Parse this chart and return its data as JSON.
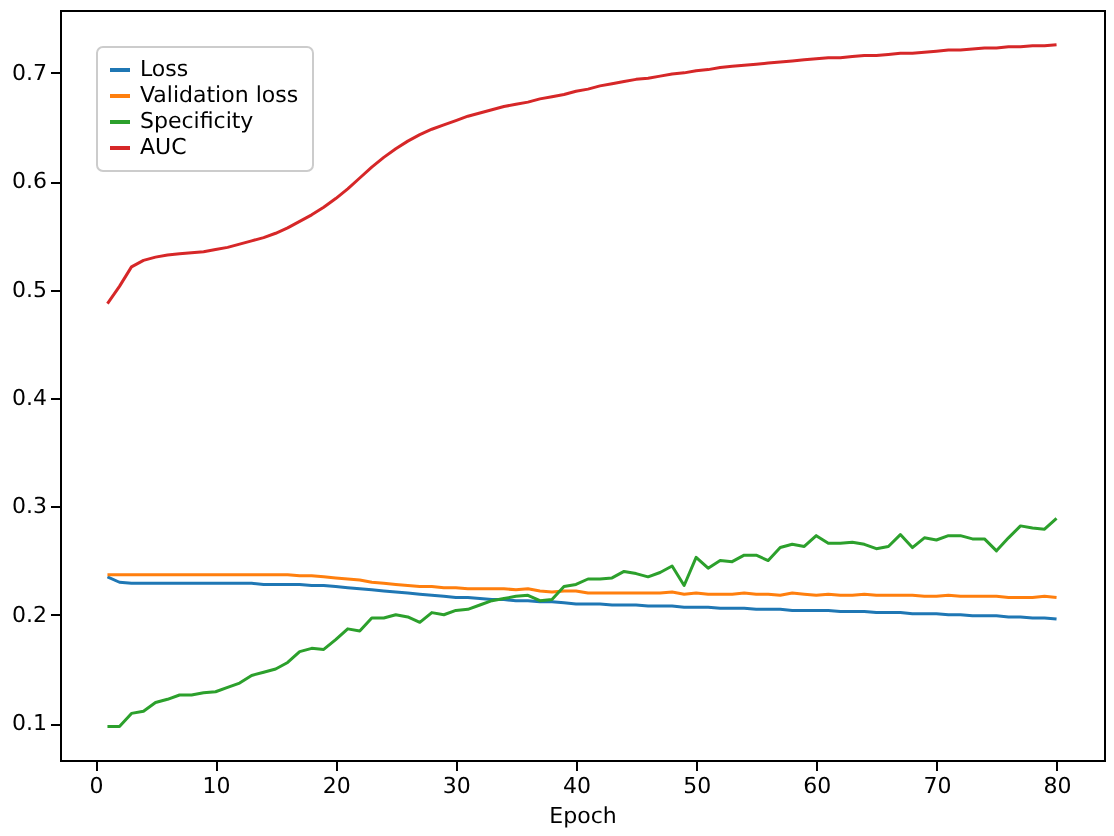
{
  "chart_data": {
    "type": "line",
    "xlabel": "Epoch",
    "x": [
      1,
      2,
      3,
      4,
      5,
      6,
      7,
      8,
      9,
      10,
      11,
      12,
      13,
      14,
      15,
      16,
      17,
      18,
      19,
      20,
      21,
      22,
      23,
      24,
      25,
      26,
      27,
      28,
      29,
      30,
      31,
      32,
      33,
      34,
      35,
      36,
      37,
      38,
      39,
      40,
      41,
      42,
      43,
      44,
      45,
      46,
      47,
      48,
      49,
      50,
      51,
      52,
      53,
      54,
      55,
      56,
      57,
      58,
      59,
      60,
      61,
      62,
      63,
      64,
      65,
      66,
      67,
      68,
      69,
      70,
      71,
      72,
      73,
      74,
      75,
      76,
      77,
      78,
      79,
      80
    ],
    "series": [
      {
        "name": "Loss",
        "color": "#1f77b4",
        "values": [
          0.235,
          0.23,
          0.229,
          0.229,
          0.229,
          0.229,
          0.229,
          0.229,
          0.229,
          0.229,
          0.229,
          0.229,
          0.229,
          0.228,
          0.228,
          0.228,
          0.228,
          0.227,
          0.227,
          0.226,
          0.225,
          0.224,
          0.223,
          0.222,
          0.221,
          0.22,
          0.219,
          0.218,
          0.217,
          0.216,
          0.216,
          0.215,
          0.214,
          0.214,
          0.213,
          0.213,
          0.212,
          0.212,
          0.211,
          0.21,
          0.21,
          0.21,
          0.209,
          0.209,
          0.209,
          0.208,
          0.208,
          0.208,
          0.207,
          0.207,
          0.207,
          0.206,
          0.206,
          0.206,
          0.205,
          0.205,
          0.205,
          0.204,
          0.204,
          0.204,
          0.204,
          0.203,
          0.203,
          0.203,
          0.202,
          0.202,
          0.202,
          0.201,
          0.201,
          0.201,
          0.2,
          0.2,
          0.199,
          0.199,
          0.199,
          0.198,
          0.198,
          0.197,
          0.197,
          0.196
        ]
      },
      {
        "name": "Validation loss",
        "color": "#ff7f0e",
        "values": [
          0.237,
          0.237,
          0.237,
          0.237,
          0.237,
          0.237,
          0.237,
          0.237,
          0.237,
          0.237,
          0.237,
          0.237,
          0.237,
          0.237,
          0.237,
          0.237,
          0.236,
          0.236,
          0.235,
          0.234,
          0.233,
          0.232,
          0.23,
          0.229,
          0.228,
          0.227,
          0.226,
          0.226,
          0.225,
          0.225,
          0.224,
          0.224,
          0.224,
          0.224,
          0.223,
          0.224,
          0.222,
          0.221,
          0.222,
          0.222,
          0.22,
          0.22,
          0.22,
          0.22,
          0.22,
          0.22,
          0.22,
          0.221,
          0.219,
          0.22,
          0.219,
          0.219,
          0.219,
          0.22,
          0.219,
          0.219,
          0.218,
          0.22,
          0.219,
          0.218,
          0.219,
          0.218,
          0.218,
          0.219,
          0.218,
          0.218,
          0.218,
          0.218,
          0.217,
          0.217,
          0.218,
          0.217,
          0.217,
          0.217,
          0.217,
          0.216,
          0.216,
          0.216,
          0.217,
          0.216
        ]
      },
      {
        "name": "Specificity",
        "color": "#2ca02c",
        "values": [
          0.097,
          0.097,
          0.109,
          0.111,
          0.119,
          0.122,
          0.126,
          0.126,
          0.128,
          0.129,
          0.133,
          0.137,
          0.144,
          0.147,
          0.15,
          0.156,
          0.166,
          0.169,
          0.168,
          0.177,
          0.187,
          0.185,
          0.197,
          0.197,
          0.2,
          0.198,
          0.193,
          0.202,
          0.2,
          0.204,
          0.205,
          0.209,
          0.213,
          0.215,
          0.217,
          0.218,
          0.213,
          0.214,
          0.226,
          0.228,
          0.233,
          0.233,
          0.234,
          0.24,
          0.238,
          0.235,
          0.239,
          0.245,
          0.227,
          0.253,
          0.243,
          0.25,
          0.249,
          0.255,
          0.255,
          0.25,
          0.262,
          0.265,
          0.263,
          0.273,
          0.266,
          0.266,
          0.267,
          0.265,
          0.261,
          0.263,
          0.274,
          0.262,
          0.271,
          0.269,
          0.273,
          0.273,
          0.27,
          0.27,
          0.259,
          0.271,
          0.282,
          0.28,
          0.279,
          0.289
        ]
      },
      {
        "name": "AUC",
        "color": "#d62728",
        "values": [
          0.487,
          0.503,
          0.521,
          0.527,
          0.53,
          0.532,
          0.533,
          0.534,
          0.535,
          0.537,
          0.539,
          0.542,
          0.545,
          0.548,
          0.552,
          0.557,
          0.563,
          0.569,
          0.576,
          0.584,
          0.593,
          0.603,
          0.613,
          0.622,
          0.63,
          0.637,
          0.643,
          0.648,
          0.652,
          0.656,
          0.66,
          0.663,
          0.666,
          0.669,
          0.671,
          0.673,
          0.676,
          0.678,
          0.68,
          0.683,
          0.685,
          0.688,
          0.69,
          0.692,
          0.694,
          0.695,
          0.697,
          0.699,
          0.7,
          0.702,
          0.703,
          0.705,
          0.706,
          0.707,
          0.708,
          0.709,
          0.71,
          0.711,
          0.712,
          0.713,
          0.714,
          0.714,
          0.715,
          0.716,
          0.716,
          0.717,
          0.718,
          0.718,
          0.719,
          0.72,
          0.721,
          0.721,
          0.722,
          0.723,
          0.723,
          0.724,
          0.724,
          0.725,
          0.725,
          0.726
        ]
      }
    ],
    "xlim": [
      -2.95,
      83.95
    ],
    "xticks": [
      0,
      10,
      20,
      30,
      40,
      50,
      60,
      70,
      80
    ],
    "ylim": [
      0.066,
      0.758
    ],
    "yticks": [
      0.1,
      0.2,
      0.3,
      0.4,
      0.5,
      0.6,
      0.7
    ],
    "grid": false,
    "legend": "top left",
    "marker": "none",
    "line_style": "solid"
  }
}
